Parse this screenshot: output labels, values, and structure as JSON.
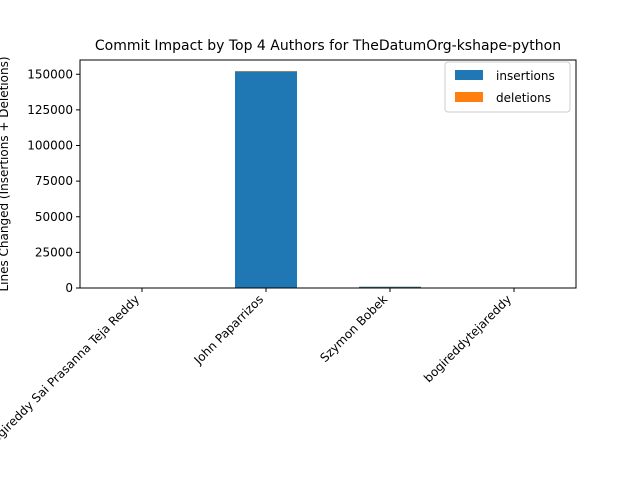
{
  "chart_data": {
    "type": "bar",
    "stacked": true,
    "title": "Commit Impact by Top 4 Authors for TheDatumOrg-kshape-python",
    "xlabel": "",
    "ylabel": "Lines Changed (Insertions + Deletions)",
    "categories": [
      "Bogireddy Sai Prasanna Teja Reddy",
      "John Paparrizos",
      "Szymon Bobek",
      "bogireddytejareddy"
    ],
    "series": [
      {
        "name": "insertions",
        "color": "#1f77b4",
        "values": [
          60,
          152000,
          900,
          5
        ]
      },
      {
        "name": "deletions",
        "color": "#ff7f0e",
        "values": [
          20,
          300,
          150,
          2
        ]
      }
    ],
    "ylim": [
      0,
      160000
    ],
    "yticks": [
      0,
      25000,
      50000,
      75000,
      100000,
      125000,
      150000
    ],
    "ytick_labels": [
      "0",
      "25000",
      "50000",
      "75000",
      "100000",
      "125000",
      "150000"
    ],
    "legend_position": "top-right",
    "grid": false
  }
}
